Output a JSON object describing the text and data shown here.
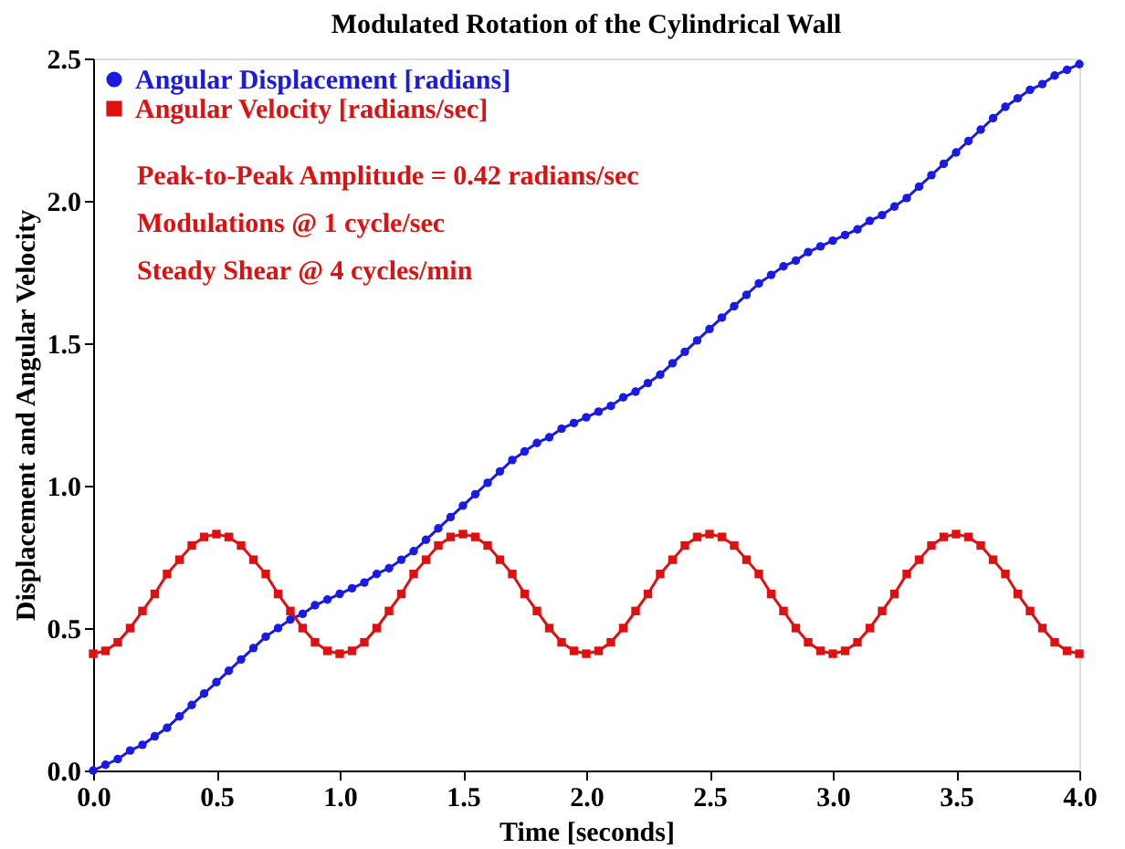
{
  "chart_data": {
    "type": "line",
    "title": "Modulated Rotation of the Cylindrical Wall",
    "xlabel": "Time [seconds]",
    "ylabel": "Displacement and Angular Velocity",
    "x": [
      0,
      0.05,
      0.1,
      0.15,
      0.2,
      0.25,
      0.3,
      0.35,
      0.4,
      0.45,
      0.5,
      0.55,
      0.6,
      0.65,
      0.7,
      0.75,
      0.8,
      0.85,
      0.9,
      0.95,
      1,
      1.05,
      1.1,
      1.15,
      1.2,
      1.25,
      1.3,
      1.35,
      1.4,
      1.45,
      1.5,
      1.55,
      1.6,
      1.65,
      1.7,
      1.75,
      1.8,
      1.85,
      1.9,
      1.95,
      2,
      2.05,
      2.1,
      2.15,
      2.2,
      2.25,
      2.3,
      2.35,
      2.4,
      2.45,
      2.5,
      2.55,
      2.6,
      2.65,
      2.7,
      2.75,
      2.8,
      2.85,
      2.9,
      2.95,
      3,
      3.05,
      3.1,
      3.15,
      3.2,
      3.25,
      3.3,
      3.35,
      3.4,
      3.45,
      3.5,
      3.55,
      3.6,
      3.65,
      3.7,
      3.75,
      3.8,
      3.85,
      3.9,
      3.95,
      4
    ],
    "series": [
      {
        "name": "Angular Displacement [radians]",
        "color": "#1a1ae6",
        "marker": "circle",
        "values": [
          0,
          0.02,
          0.04,
          0.07,
          0.09,
          0.12,
          0.15,
          0.19,
          0.23,
          0.27,
          0.31,
          0.35,
          0.39,
          0.43,
          0.47,
          0.5,
          0.53,
          0.55,
          0.58,
          0.6,
          0.62,
          0.64,
          0.66,
          0.69,
          0.71,
          0.74,
          0.77,
          0.81,
          0.85,
          0.89,
          0.93,
          0.97,
          1.01,
          1.05,
          1.09,
          1.12,
          1.15,
          1.17,
          1.2,
          1.22,
          1.24,
          1.26,
          1.28,
          1.31,
          1.33,
          1.36,
          1.39,
          1.43,
          1.47,
          1.51,
          1.55,
          1.59,
          1.63,
          1.67,
          1.71,
          1.74,
          1.77,
          1.79,
          1.82,
          1.84,
          1.86,
          1.88,
          1.9,
          1.93,
          1.95,
          1.98,
          2.01,
          2.05,
          2.09,
          2.13,
          2.17,
          2.21,
          2.25,
          2.29,
          2.33,
          2.36,
          2.39,
          2.41,
          2.44,
          2.46,
          2.48
        ]
      },
      {
        "name": "Angular Velocity [radians/sec]",
        "color": "#e01010",
        "marker": "square",
        "values": [
          0.41,
          0.42,
          0.45,
          0.5,
          0.56,
          0.62,
          0.69,
          0.74,
          0.79,
          0.82,
          0.83,
          0.82,
          0.79,
          0.74,
          0.69,
          0.62,
          0.56,
          0.5,
          0.45,
          0.42,
          0.41,
          0.42,
          0.45,
          0.5,
          0.56,
          0.62,
          0.69,
          0.74,
          0.79,
          0.82,
          0.83,
          0.82,
          0.79,
          0.74,
          0.69,
          0.62,
          0.56,
          0.5,
          0.45,
          0.42,
          0.41,
          0.42,
          0.45,
          0.5,
          0.56,
          0.62,
          0.69,
          0.74,
          0.79,
          0.82,
          0.83,
          0.82,
          0.79,
          0.74,
          0.69,
          0.62,
          0.56,
          0.5,
          0.45,
          0.42,
          0.41,
          0.42,
          0.45,
          0.5,
          0.56,
          0.62,
          0.69,
          0.74,
          0.79,
          0.82,
          0.83,
          0.82,
          0.79,
          0.74,
          0.69,
          0.62,
          0.56,
          0.5,
          0.45,
          0.42,
          0.41
        ]
      }
    ],
    "annotations": [
      "Peak-to-Peak Amplitude = 0.42 radians/sec",
      "Modulations @ 1 cycle/sec",
      "Steady Shear @ 4 cycles/min"
    ],
    "xlim": [
      0,
      4
    ],
    "xticks": [
      {
        "value": 0,
        "label": "0.0"
      },
      0.5,
      {
        "value": 1,
        "label": "1.0"
      },
      1.5,
      {
        "value": 2,
        "label": "2.0"
      },
      2.5,
      {
        "value": 3,
        "label": "3.0"
      },
      3.5,
      {
        "value": 4,
        "label": "4.0"
      }
    ],
    "ylim": [
      0,
      2.5
    ],
    "yticks": [
      {
        "value": 0,
        "label": "0.0"
      },
      0.5,
      {
        "value": 1,
        "label": "1.0"
      },
      1.5,
      {
        "value": 2,
        "label": "2.0"
      },
      2.5
    ],
    "grid": false,
    "legend": "top left",
    "line_style": "solid"
  }
}
